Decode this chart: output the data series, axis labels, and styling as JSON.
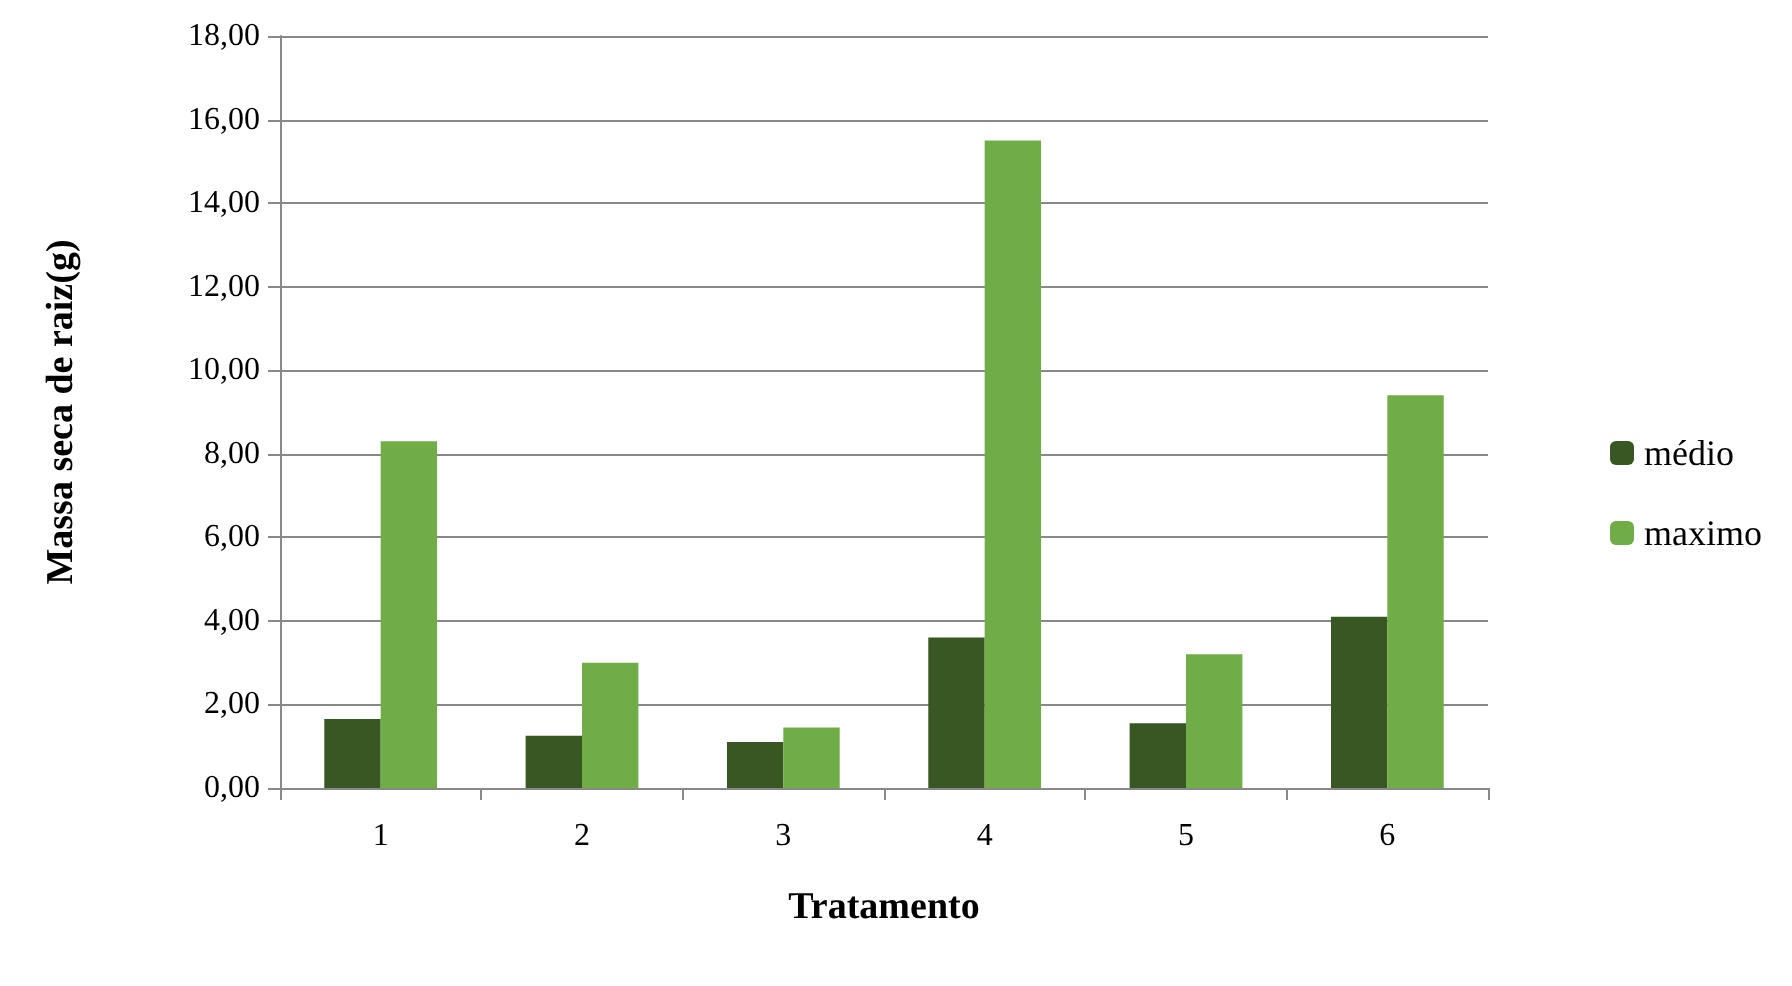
{
  "chart_data": {
    "type": "bar",
    "xlabel": "Tratamento",
    "ylabel": "Massa seca de raiz(g)",
    "categories": [
      "1",
      "2",
      "3",
      "4",
      "5",
      "6"
    ],
    "series": [
      {
        "name": "médio",
        "color": "#385723",
        "values": [
          1.65,
          1.25,
          1.1,
          3.6,
          1.55,
          4.1
        ]
      },
      {
        "name": "maximo",
        "color": "#70ad47",
        "values": [
          8.3,
          3.0,
          1.45,
          15.5,
          3.2,
          9.4
        ]
      }
    ],
    "ylim": [
      0,
      18
    ],
    "yticks": [
      {
        "value": 0,
        "label": "0,00"
      },
      {
        "value": 2,
        "label": "2,00"
      },
      {
        "value": 4,
        "label": "4,00"
      },
      {
        "value": 6,
        "label": "6,00"
      },
      {
        "value": 8,
        "label": "8,00"
      },
      {
        "value": 10,
        "label": "10,00"
      },
      {
        "value": 12,
        "label": "12,00"
      },
      {
        "value": 14,
        "label": "14,00"
      },
      {
        "value": 16,
        "label": "16,00"
      },
      {
        "value": 18,
        "label": "18,00"
      }
    ],
    "grid": "y",
    "legend": "right"
  }
}
